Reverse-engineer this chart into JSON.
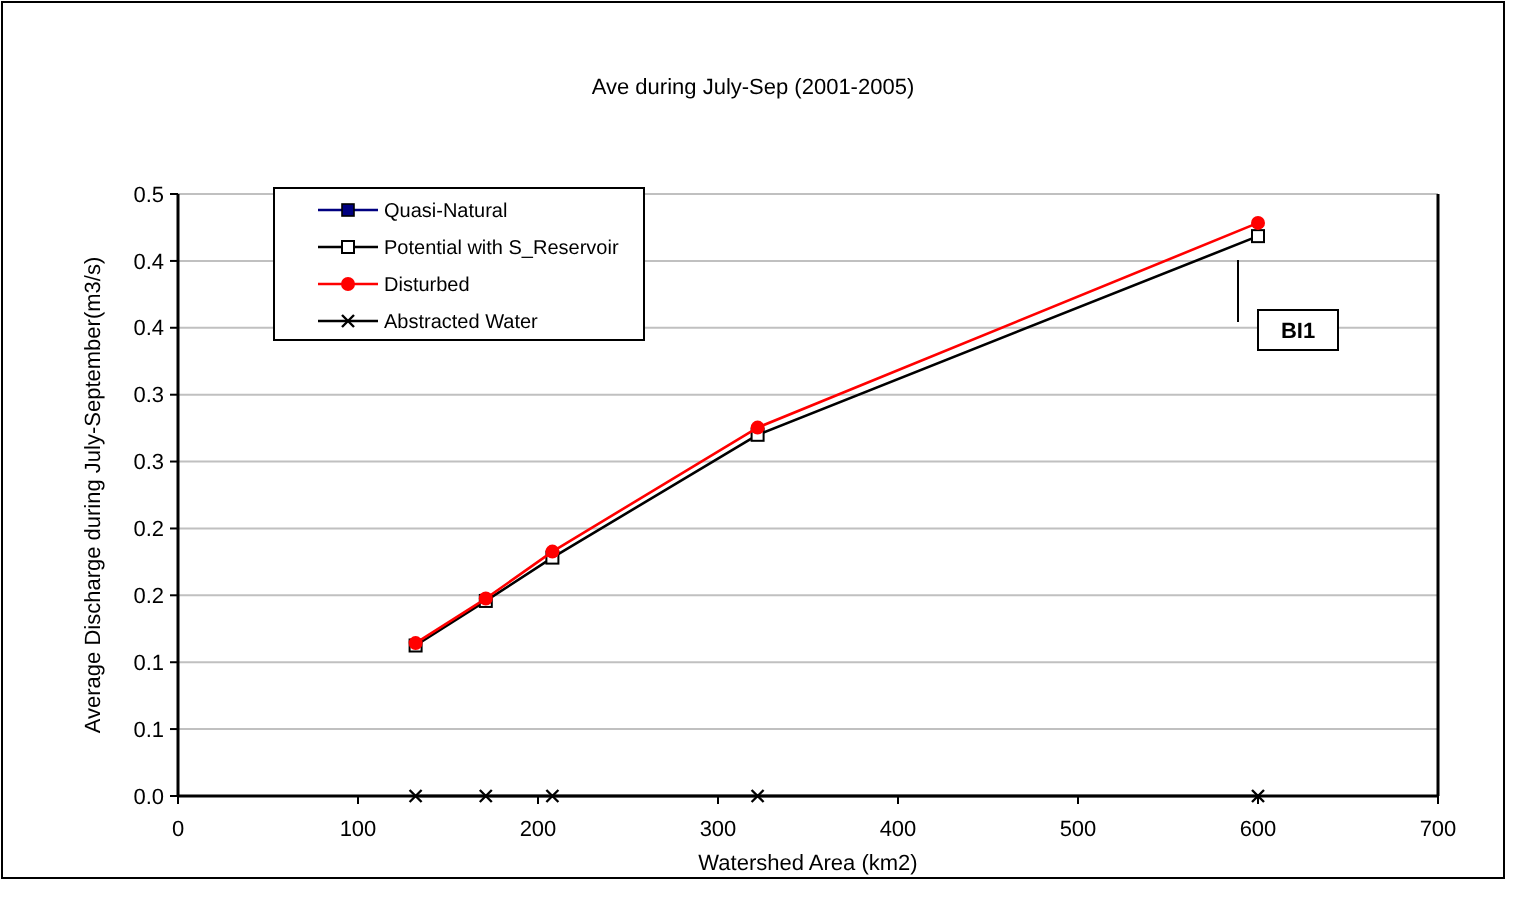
{
  "chart_data": {
    "type": "line",
    "title": "Ave during July-Sep (2001-2005)",
    "xlabel": "Watershed Area (km2)",
    "ylabel": "Average Discharge during July-September(m3/s)",
    "x": [
      132,
      171,
      208,
      322,
      600
    ],
    "series": [
      {
        "name": "Quasi-Natural",
        "color": "#000080",
        "marker": "square",
        "values": [
          null,
          null,
          null,
          null,
          null
        ]
      },
      {
        "name": "Potential with S_Reservoir",
        "color": "#000000",
        "marker": "square-open",
        "values": [
          0.125,
          0.162,
          0.198,
          0.3,
          0.465
        ]
      },
      {
        "name": "Disturbed",
        "color": "#ff0000",
        "marker": "circle",
        "values": [
          0.127,
          0.164,
          0.203,
          0.306,
          0.476
        ]
      },
      {
        "name": "Abstracted Water",
        "color": "#000000",
        "marker": "cross",
        "values": [
          0,
          0,
          0,
          0,
          0
        ]
      }
    ],
    "xlim": [
      0,
      700
    ],
    "xticks": [
      0,
      100,
      200,
      300,
      400,
      500,
      600,
      700
    ],
    "ylim": [
      0,
      0.5
    ],
    "yticks": [
      {
        "value": 0,
        "label": "0.0"
      },
      {
        "value": 0.0556,
        "label": "0.1"
      },
      {
        "value": 0.1111,
        "label": "0.1"
      },
      {
        "value": 0.1667,
        "label": "0.2"
      },
      {
        "value": 0.2222,
        "label": "0.2"
      },
      {
        "value": 0.2778,
        "label": "0.3"
      },
      {
        "value": 0.3333,
        "label": "0.3"
      },
      {
        "value": 0.3889,
        "label": "0.4"
      },
      {
        "value": 0.4444,
        "label": "0.4"
      },
      {
        "value": 0.5,
        "label": "0.5"
      }
    ],
    "grid": "y",
    "legend": "top left",
    "annotations": [
      "BI1"
    ]
  }
}
